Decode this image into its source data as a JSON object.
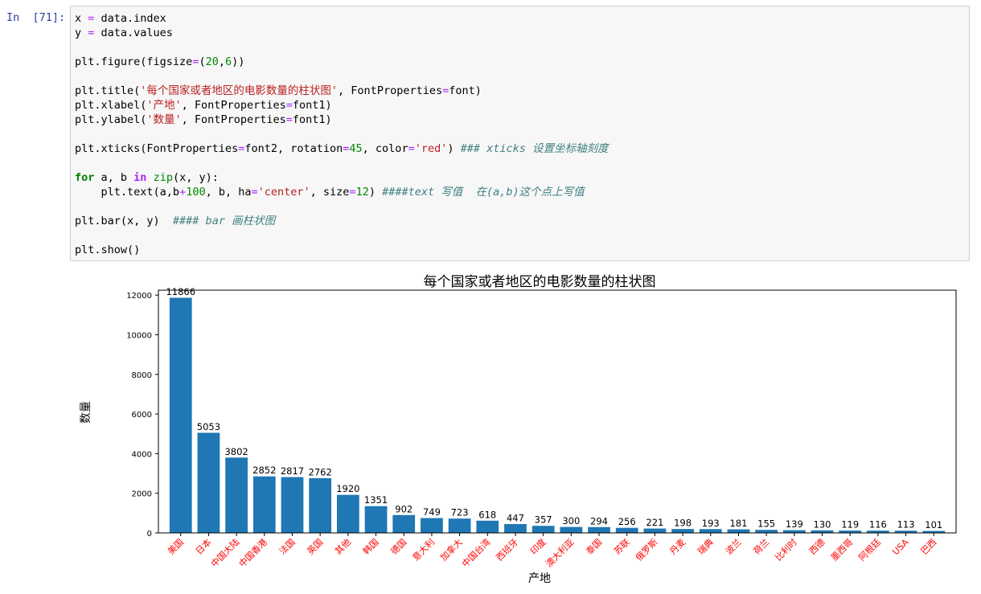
{
  "cell": {
    "prompt": "In  [71]:",
    "code": {
      "l1": "x = data.index",
      "l2": "y = data.values",
      "l3": "plt.figure(figsize=(20,6))",
      "l4": "plt.title('每个国家或者地区的电影数量的柱状图', FontProperties=font)",
      "l5": "plt.xlabel('产地', FontProperties=font1)",
      "l6": "plt.ylabel('数量', FontProperties=font1)",
      "l7": "plt.xticks(FontProperties=font2, rotation=45, color='red') ### xticks 设置坐标轴刻度",
      "l8": "for a, b in zip(x, y):",
      "l9": "    plt.text(a,b+100, b, ha='center', size=12) ####text 写值  在(a,b)这个点上写值",
      "l10": "plt.bar(x, y)  #### bar 画柱状图",
      "l11": "plt.show()"
    }
  },
  "chart_data": {
    "type": "bar",
    "title": "每个国家或者地区的电影数量的柱状图",
    "xlabel": "产地",
    "ylabel": "数量",
    "categories": [
      "美国",
      "日本",
      "中国大陆",
      "中国香港",
      "法国",
      "英国",
      "其他",
      "韩国",
      "德国",
      "意大利",
      "加拿大",
      "中国台湾",
      "西班牙",
      "印度",
      "澳大利亚",
      "泰国",
      "苏联",
      "俄罗斯",
      "丹麦",
      "瑞典",
      "波兰",
      "荷兰",
      "比利时",
      "西德",
      "墨西哥",
      "阿根廷",
      "USA",
      "巴西"
    ],
    "values": [
      11866,
      5053,
      3802,
      2852,
      2817,
      2762,
      1920,
      1351,
      902,
      749,
      723,
      618,
      447,
      357,
      300,
      294,
      256,
      221,
      198,
      193,
      181,
      155,
      139,
      130,
      119,
      116,
      113,
      101
    ],
    "ylim": [
      0,
      12250
    ],
    "yticks": [
      0,
      2000,
      4000,
      6000,
      8000,
      10000,
      12000
    ],
    "bar_color": "#1f77b4",
    "tick_label_color": "#ff0000",
    "grid": false
  }
}
